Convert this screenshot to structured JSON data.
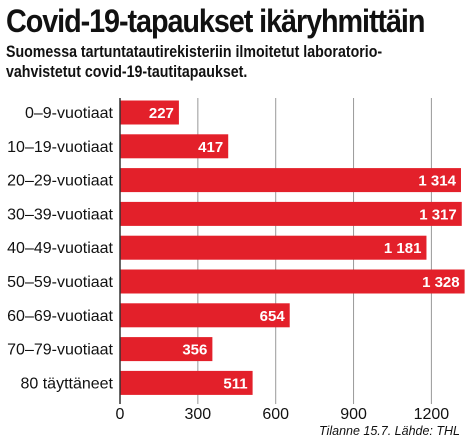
{
  "title": "Covid-19-tapaukset ikäryhmittäin",
  "subtitle_lines": [
    "Suomessa tartuntatautirekisteriin ilmoitetut laboratorio-",
    "vahvistetut covid-19-tautitapaukset."
  ],
  "source": "Tilanne 15.7. Lähde: THL",
  "colors": {
    "bar": "#e3202a",
    "grid": "#999999"
  },
  "chart_data": {
    "type": "bar",
    "orientation": "horizontal",
    "categories": [
      "0–9-vuotiaat",
      "10–19-vuotiaat",
      "20–29-vuotiaat",
      "30–39-vuotiaat",
      "40–49-vuotiaat",
      "50–59-vuotiaat",
      "60–69-vuotiaat",
      "70–79-vuotiaat",
      "80 täyttäneet"
    ],
    "values": [
      227,
      417,
      1314,
      1317,
      1181,
      1328,
      654,
      356,
      511
    ],
    "value_labels": [
      "227",
      "417",
      "1 314",
      "1 317",
      "1 181",
      "1 328",
      "654",
      "356",
      "511"
    ],
    "xticks": [
      0,
      300,
      600,
      900,
      1200
    ],
    "xlim": [
      0,
      1300
    ],
    "grid": true
  }
}
